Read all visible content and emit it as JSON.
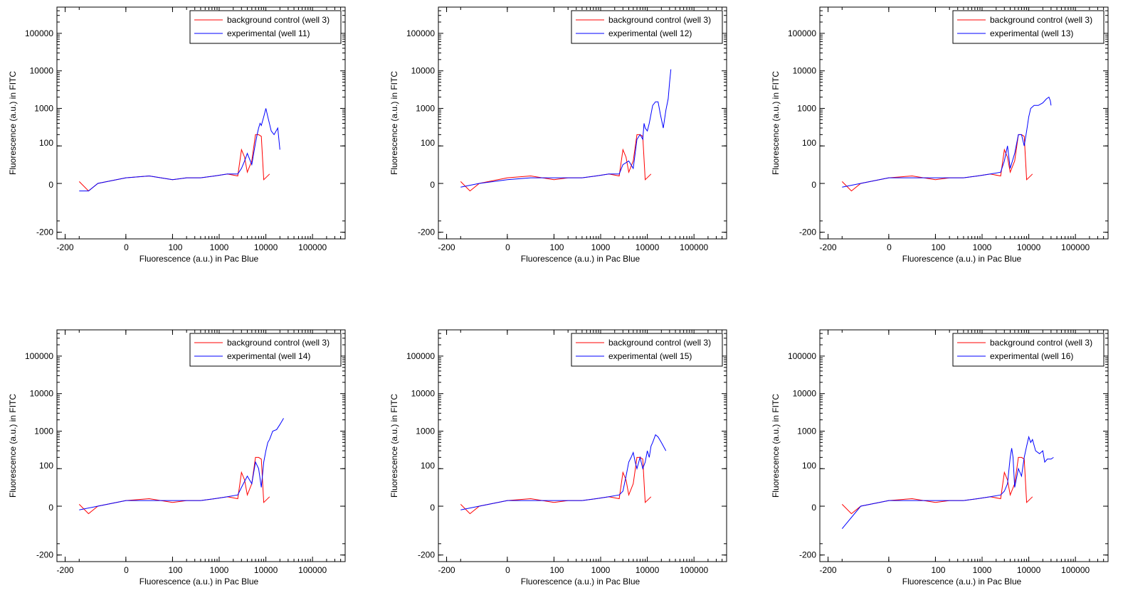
{
  "axes_style": {
    "xscale": "symlog",
    "yscale": "symlog",
    "xlim": [
      -300,
      500000
    ],
    "ylim": [
      -300,
      500000
    ],
    "legend_placement": "top-right",
    "grid": false,
    "series_colors": {
      "background": "#ff0000",
      "experimental": "#0000ff"
    }
  },
  "chart_data": [
    {
      "type": "line",
      "xlabel": "Fluorescence (a.u.) in Pac Blue",
      "ylabel": "Fluorescence (a.u.) in FITC",
      "xticks": [
        {
          "value": -200,
          "label": "-200"
        },
        {
          "value": 0,
          "label": "0"
        },
        {
          "value": 100,
          "label": "100"
        },
        {
          "value": 1000,
          "label": "1000"
        },
        {
          "value": 10000,
          "label": "10000"
        },
        {
          "value": 100000,
          "label": "100000"
        }
      ],
      "yticks": [
        {
          "value": -200,
          "label": "-200"
        },
        {
          "value": 0,
          "label": "0"
        },
        {
          "value": 100,
          "label": "100"
        },
        {
          "value": 1000,
          "label": "1000"
        },
        {
          "value": 10000,
          "label": "10000"
        },
        {
          "value": 100000,
          "label": "100000"
        }
      ],
      "series": [
        {
          "name": "background control (well 3)",
          "color": "#ff0000",
          "x": [
            -100,
            -80,
            -60,
            -40,
            0,
            50,
            100,
            200,
            400,
            800,
            1500,
            2500,
            3000,
            3500,
            4000,
            5000,
            6000,
            7000,
            8000,
            9000,
            12000
          ],
          "y": [
            5,
            -20,
            0,
            5,
            15,
            20,
            10,
            15,
            15,
            20,
            25,
            20,
            90,
            70,
            30,
            60,
            200,
            200,
            180,
            10,
            25
          ]
        },
        {
          "name": "experimental (well 11)",
          "color": "#0000ff",
          "x": [
            -100,
            -80,
            -60,
            0,
            50,
            100,
            200,
            400,
            800,
            1500,
            2500,
            3000,
            3500,
            4000,
            5000,
            6000,
            6500,
            7000,
            7500,
            8000,
            9000,
            10000,
            11000,
            13000,
            15000,
            18000,
            20000
          ],
          "y": [
            -20,
            -20,
            0,
            15,
            20,
            10,
            15,
            15,
            20,
            25,
            25,
            40,
            60,
            80,
            50,
            120,
            200,
            300,
            400,
            350,
            600,
            1000,
            600,
            250,
            200,
            300,
            90
          ]
        }
      ]
    },
    {
      "type": "line",
      "xlabel": "Fluorescence (a.u.) in Pac Blue",
      "ylabel": "Fluorescence (a.u.) in FITC",
      "xticks": [
        {
          "value": -200,
          "label": "-200"
        },
        {
          "value": 0,
          "label": "0"
        },
        {
          "value": 100,
          "label": "100"
        },
        {
          "value": 1000,
          "label": "1000"
        },
        {
          "value": 10000,
          "label": "10000"
        },
        {
          "value": 100000,
          "label": "100000"
        }
      ],
      "yticks": [
        {
          "value": -200,
          "label": "-200"
        },
        {
          "value": 0,
          "label": "0"
        },
        {
          "value": 100,
          "label": "100"
        },
        {
          "value": 1000,
          "label": "1000"
        },
        {
          "value": 10000,
          "label": "10000"
        },
        {
          "value": 100000,
          "label": "100000"
        }
      ],
      "series": [
        {
          "name": "background control (well 3)",
          "color": "#ff0000",
          "x": [
            -100,
            -80,
            -60,
            -40,
            0,
            50,
            100,
            200,
            400,
            800,
            1500,
            2500,
            3000,
            3500,
            4000,
            5000,
            6000,
            7000,
            8000,
            9000,
            12000
          ],
          "y": [
            5,
            -20,
            0,
            5,
            15,
            20,
            10,
            15,
            15,
            20,
            25,
            20,
            90,
            70,
            30,
            60,
            200,
            200,
            180,
            10,
            25
          ]
        },
        {
          "name": "experimental (well 12)",
          "color": "#0000ff",
          "x": [
            -100,
            -60,
            0,
            50,
            100,
            200,
            400,
            800,
            1500,
            2500,
            3000,
            4000,
            5000,
            6000,
            7000,
            8000,
            8500,
            9000,
            10000,
            11000,
            13000,
            15000,
            17000,
            19000,
            22000,
            25000,
            28000,
            30000,
            32000
          ],
          "y": [
            -10,
            0,
            10,
            15,
            15,
            15,
            15,
            20,
            25,
            25,
            50,
            60,
            40,
            150,
            200,
            150,
            400,
            300,
            250,
            400,
            1200,
            1500,
            1500,
            700,
            300,
            900,
            1800,
            5000,
            11000
          ]
        }
      ]
    },
    {
      "type": "line",
      "xlabel": "Fluorescence (a.u.) in Pac Blue",
      "ylabel": "Fluorescence (a.u.) in FITC",
      "xticks": [
        {
          "value": -200,
          "label": "-200"
        },
        {
          "value": 0,
          "label": "0"
        },
        {
          "value": 100,
          "label": "100"
        },
        {
          "value": 1000,
          "label": "1000"
        },
        {
          "value": 10000,
          "label": "10000"
        },
        {
          "value": 100000,
          "label": "100000"
        }
      ],
      "yticks": [
        {
          "value": -200,
          "label": "-200"
        },
        {
          "value": 0,
          "label": "0"
        },
        {
          "value": 100,
          "label": "100"
        },
        {
          "value": 1000,
          "label": "1000"
        },
        {
          "value": 10000,
          "label": "10000"
        },
        {
          "value": 100000,
          "label": "100000"
        }
      ],
      "series": [
        {
          "name": "background control (well 3)",
          "color": "#ff0000",
          "x": [
            -100,
            -80,
            -60,
            -40,
            0,
            50,
            100,
            200,
            400,
            800,
            1500,
            2500,
            3000,
            3500,
            4000,
            5000,
            6000,
            7000,
            8000,
            9000,
            12000
          ],
          "y": [
            5,
            -20,
            0,
            5,
            15,
            20,
            10,
            15,
            15,
            20,
            25,
            20,
            90,
            70,
            30,
            60,
            200,
            200,
            180,
            10,
            25
          ]
        },
        {
          "name": "experimental (well 13)",
          "color": "#0000ff",
          "x": [
            -100,
            -60,
            0,
            50,
            100,
            200,
            400,
            800,
            1500,
            2500,
            3000,
            3500,
            4000,
            5000,
            6000,
            7000,
            8000,
            9000,
            10000,
            11000,
            13000,
            16000,
            20000,
            24000,
            27000,
            29000,
            30000
          ],
          "y": [
            -10,
            0,
            15,
            15,
            15,
            15,
            15,
            20,
            25,
            30,
            60,
            100,
            40,
            80,
            200,
            200,
            100,
            250,
            600,
            1000,
            1200,
            1200,
            1400,
            1800,
            2000,
            1600,
            1200
          ]
        }
      ]
    },
    {
      "type": "line",
      "xlabel": "Fluorescence (a.u.) in Pac Blue",
      "ylabel": "Fluorescence (a.u.) in FITC",
      "xticks": [
        {
          "value": -200,
          "label": "-200"
        },
        {
          "value": 0,
          "label": "0"
        },
        {
          "value": 100,
          "label": "100"
        },
        {
          "value": 1000,
          "label": "1000"
        },
        {
          "value": 10000,
          "label": "10000"
        },
        {
          "value": 100000,
          "label": "100000"
        }
      ],
      "yticks": [
        {
          "value": -200,
          "label": "-200"
        },
        {
          "value": 0,
          "label": "0"
        },
        {
          "value": 100,
          "label": "100"
        },
        {
          "value": 1000,
          "label": "1000"
        },
        {
          "value": 10000,
          "label": "10000"
        },
        {
          "value": 100000,
          "label": "100000"
        }
      ],
      "series": [
        {
          "name": "background control (well 3)",
          "color": "#ff0000",
          "x": [
            -100,
            -80,
            -60,
            -40,
            0,
            50,
            100,
            200,
            400,
            800,
            1500,
            2500,
            3000,
            3500,
            4000,
            5000,
            6000,
            7000,
            8000,
            9000,
            12000
          ],
          "y": [
            5,
            -20,
            0,
            5,
            15,
            20,
            10,
            15,
            15,
            20,
            25,
            20,
            90,
            70,
            30,
            60,
            200,
            200,
            180,
            10,
            25
          ]
        },
        {
          "name": "experimental (well 14)",
          "color": "#0000ff",
          "x": [
            -100,
            -60,
            0,
            50,
            100,
            200,
            400,
            800,
            1500,
            2500,
            3000,
            4000,
            5000,
            6000,
            7000,
            8000,
            9000,
            10000,
            11000,
            12000,
            14000,
            17000,
            20000,
            24000
          ],
          "y": [
            -10,
            0,
            15,
            15,
            15,
            15,
            15,
            20,
            25,
            30,
            50,
            80,
            60,
            150,
            100,
            50,
            150,
            300,
            500,
            600,
            1000,
            1100,
            1500,
            2200
          ]
        }
      ]
    },
    {
      "type": "line",
      "xlabel": "Fluorescence (a.u.) in Pac Blue",
      "ylabel": "Fluorescence (a.u.) in FITC",
      "xticks": [
        {
          "value": -200,
          "label": "-200"
        },
        {
          "value": 0,
          "label": "0"
        },
        {
          "value": 100,
          "label": "100"
        },
        {
          "value": 1000,
          "label": "1000"
        },
        {
          "value": 10000,
          "label": "10000"
        },
        {
          "value": 100000,
          "label": "100000"
        }
      ],
      "yticks": [
        {
          "value": -200,
          "label": "-200"
        },
        {
          "value": 0,
          "label": "0"
        },
        {
          "value": 100,
          "label": "100"
        },
        {
          "value": 1000,
          "label": "1000"
        },
        {
          "value": 10000,
          "label": "10000"
        },
        {
          "value": 100000,
          "label": "100000"
        }
      ],
      "series": [
        {
          "name": "background control (well 3)",
          "color": "#ff0000",
          "x": [
            -100,
            -80,
            -60,
            -40,
            0,
            50,
            100,
            200,
            400,
            800,
            1500,
            2500,
            3000,
            3500,
            4000,
            5000,
            6000,
            7000,
            8000,
            9000,
            12000
          ],
          "y": [
            5,
            -20,
            0,
            5,
            15,
            20,
            10,
            15,
            15,
            20,
            25,
            20,
            90,
            70,
            30,
            60,
            200,
            200,
            180,
            10,
            25
          ]
        },
        {
          "name": "experimental (well 15)",
          "color": "#0000ff",
          "x": [
            -100,
            -60,
            0,
            50,
            100,
            200,
            400,
            800,
            1500,
            2500,
            3000,
            3500,
            4000,
            4500,
            5000,
            5500,
            6000,
            7000,
            8000,
            9000,
            10000,
            11000,
            12000,
            13000,
            15000,
            17000,
            20000,
            25000
          ],
          "y": [
            -10,
            0,
            15,
            15,
            15,
            15,
            15,
            20,
            25,
            30,
            40,
            80,
            150,
            200,
            270,
            150,
            100,
            200,
            100,
            150,
            300,
            200,
            400,
            500,
            800,
            700,
            500,
            300
          ]
        }
      ]
    },
    {
      "type": "line",
      "xlabel": "Fluorescence (a.u.) in Pac Blue",
      "ylabel": "Fluorescence (a.u.) in FITC",
      "xticks": [
        {
          "value": -200,
          "label": "-200"
        },
        {
          "value": 0,
          "label": "0"
        },
        {
          "value": 100,
          "label": "100"
        },
        {
          "value": 1000,
          "label": "1000"
        },
        {
          "value": 10000,
          "label": "10000"
        },
        {
          "value": 100000,
          "label": "100000"
        }
      ],
      "yticks": [
        {
          "value": -200,
          "label": "-200"
        },
        {
          "value": 0,
          "label": "0"
        },
        {
          "value": 100,
          "label": "100"
        },
        {
          "value": 1000,
          "label": "1000"
        },
        {
          "value": 10000,
          "label": "10000"
        },
        {
          "value": 100000,
          "label": "100000"
        }
      ],
      "series": [
        {
          "name": "background control (well 3)",
          "color": "#ff0000",
          "x": [
            -100,
            -80,
            -60,
            -40,
            0,
            50,
            100,
            200,
            400,
            800,
            1500,
            2500,
            3000,
            3500,
            4000,
            5000,
            6000,
            7000,
            8000,
            9000,
            12000
          ],
          "y": [
            5,
            -20,
            0,
            5,
            15,
            20,
            10,
            15,
            15,
            20,
            25,
            20,
            90,
            70,
            30,
            60,
            200,
            200,
            180,
            10,
            25
          ]
        },
        {
          "name": "experimental (well 16)",
          "color": "#0000ff",
          "x": [
            -100,
            -60,
            0,
            50,
            100,
            200,
            400,
            800,
            1500,
            2500,
            3000,
            3500,
            4000,
            4300,
            4600,
            5000,
            6000,
            7000,
            8000,
            9000,
            10000,
            11000,
            12000,
            14000,
            17000,
            20000,
            22000,
            25000,
            30000,
            34000
          ],
          "y": [
            -60,
            0,
            15,
            15,
            15,
            15,
            15,
            20,
            25,
            30,
            40,
            60,
            200,
            350,
            200,
            50,
            100,
            80,
            200,
            400,
            700,
            500,
            600,
            300,
            250,
            300,
            150,
            180,
            180,
            200
          ]
        }
      ]
    }
  ]
}
